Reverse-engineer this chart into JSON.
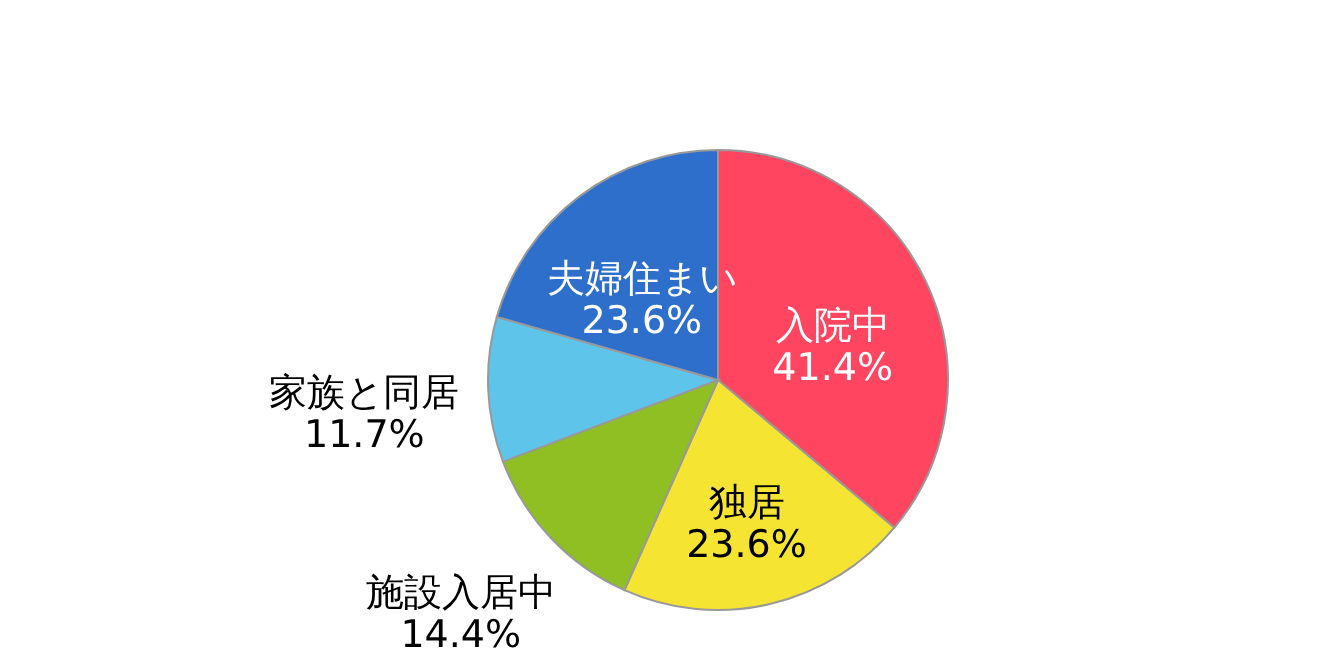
{
  "chart_data": {
    "type": "pie",
    "categories": [
      "入院中",
      "独居",
      "施設入居中",
      "家族と同居",
      "夫婦住まい"
    ],
    "values": [
      41.4,
      23.6,
      14.4,
      11.7,
      23.6
    ],
    "value_labels": [
      "41.4%",
      "23.6%",
      "14.4%",
      "11.7%",
      "23.6%"
    ],
    "colors": [
      "#ff4560",
      "#f5e431",
      "#8fbf22",
      "#5ec4ea",
      "#2f6fcc"
    ]
  }
}
